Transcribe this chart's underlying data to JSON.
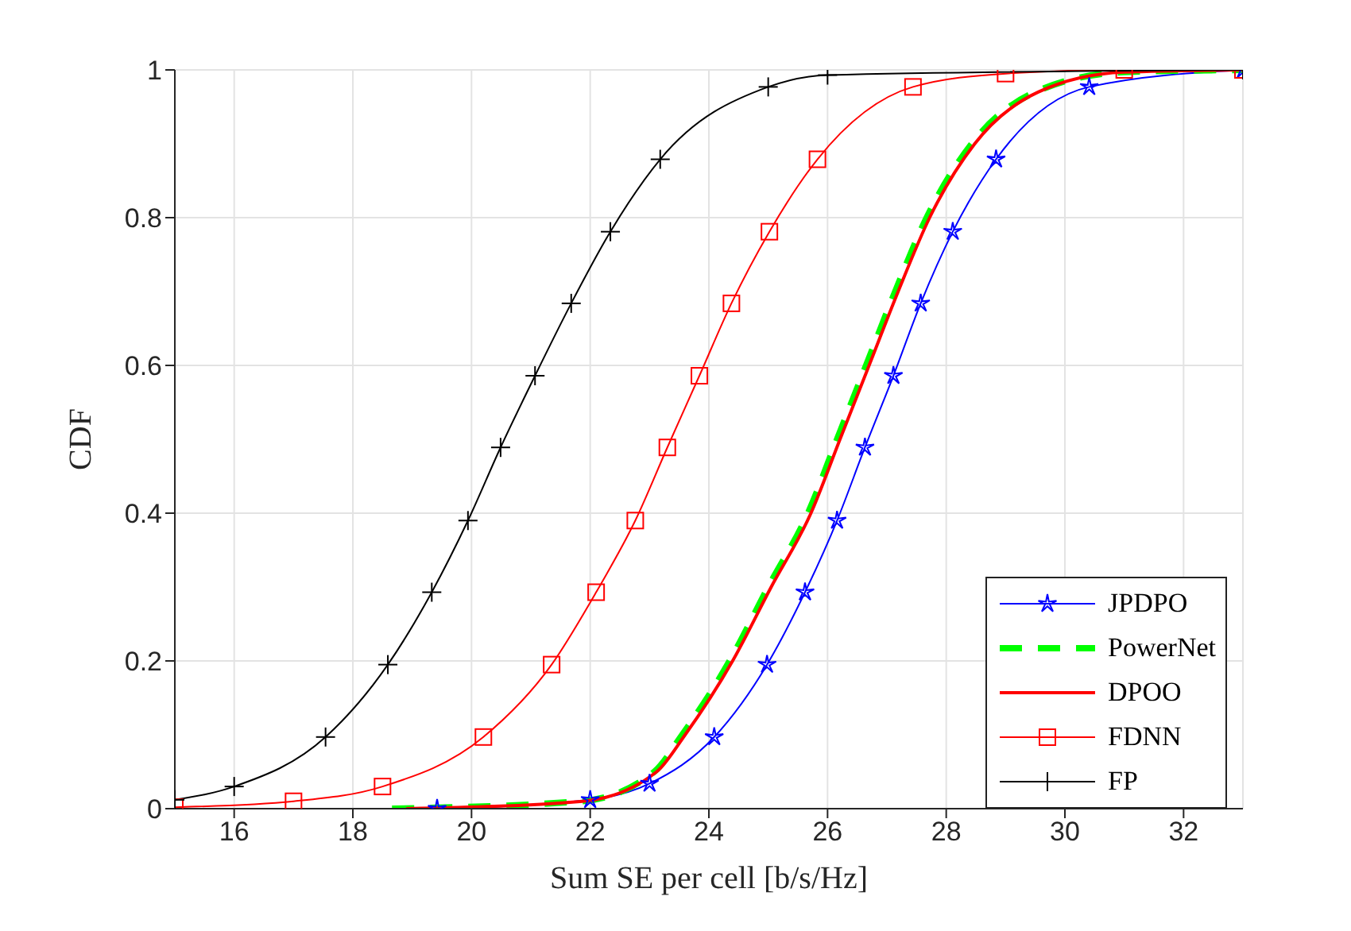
{
  "chart_data": {
    "type": "line",
    "xlabel": "Sum SE per cell [b/s/Hz]",
    "ylabel": "CDF",
    "xlim": [
      15,
      33
    ],
    "xticks": [
      16,
      18,
      20,
      22,
      24,
      26,
      28,
      30,
      32
    ],
    "ylim": [
      0,
      1
    ],
    "yticks": [
      0,
      0.2,
      0.4,
      0.6,
      0.8,
      1
    ],
    "grid": true,
    "legend": "bottom right",
    "series": [
      {
        "name": "JPDPO",
        "color": "#0000ff",
        "marker": "star",
        "line_style": "solid",
        "x": [
          19.42,
          22,
          23,
          24.09,
          24.98,
          25.62,
          26.16,
          26.63,
          27.11,
          27.57,
          28.11,
          28.84,
          30.41,
          33
        ],
        "values": [
          0,
          0.012,
          0.034,
          0.097,
          0.195,
          0.293,
          0.39,
          0.489,
          0.586,
          0.684,
          0.781,
          0.879,
          0.977,
          1
        ]
      },
      {
        "name": "PowerNet",
        "color": "#00ff00",
        "marker": "none",
        "line_style": "dashed",
        "x": [
          18.66,
          21.85,
          23.08,
          23.55,
          24.35,
          25.0,
          25.67,
          26.16,
          26.65,
          27.14,
          27.67,
          28.43,
          29.5,
          31,
          33
        ],
        "values": [
          0,
          0.01,
          0.05,
          0.1,
          0.2,
          0.3,
          0.4,
          0.5,
          0.6,
          0.7,
          0.8,
          0.9,
          0.97,
          0.997,
          1
        ]
      },
      {
        "name": "DPOO",
        "color": "#ff0000",
        "marker": "none",
        "line_style": "solid",
        "x": [
          18.9,
          21.87,
          23.12,
          23.6,
          24.4,
          25.05,
          25.72,
          26.21,
          26.7,
          27.19,
          27.72,
          28.48,
          29.55,
          31,
          33
        ],
        "values": [
          0,
          0.01,
          0.05,
          0.1,
          0.2,
          0.3,
          0.4,
          0.5,
          0.6,
          0.7,
          0.8,
          0.9,
          0.97,
          0.997,
          1
        ]
      },
      {
        "name": "FDNN",
        "color": "#ff0000",
        "marker": "square",
        "line_style": "solid",
        "x": [
          15,
          17,
          18.5,
          20.2,
          21.35,
          22.1,
          22.76,
          23.3,
          23.84,
          24.38,
          25.02,
          25.83,
          27.44,
          29,
          31,
          33
        ],
        "values": [
          0.002,
          0.01,
          0.03,
          0.097,
          0.195,
          0.293,
          0.39,
          0.489,
          0.586,
          0.684,
          0.781,
          0.879,
          0.977,
          0.995,
          1,
          1
        ]
      },
      {
        "name": "FP",
        "color": "#000000",
        "marker": "cross",
        "line_style": "solid",
        "x": [
          15,
          16,
          17.54,
          18.59,
          19.33,
          19.94,
          20.49,
          21.07,
          21.68,
          22.34,
          23.18,
          25.0,
          26,
          33
        ],
        "values": [
          0.012,
          0.03,
          0.097,
          0.195,
          0.293,
          0.39,
          0.489,
          0.586,
          0.684,
          0.781,
          0.879,
          0.977,
          0.993,
          1
        ]
      }
    ]
  }
}
